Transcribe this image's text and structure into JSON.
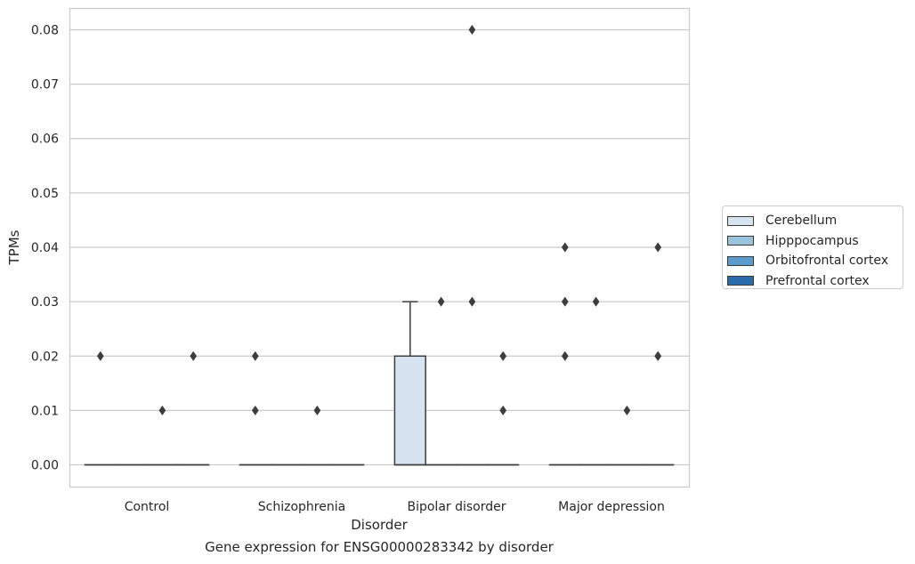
{
  "chart_data": {
    "type": "box",
    "title": "Gene expression for ENSG00000283342 by disorder",
    "xlabel": "Disorder",
    "ylabel": "TPMs",
    "categories": [
      "Control",
      "Schizophrenia",
      "Bipolar disorder",
      "Major depression"
    ],
    "ylim": [
      -0.004,
      0.084
    ],
    "yticks": [
      "0.00",
      "0.01",
      "0.02",
      "0.03",
      "0.04",
      "0.05",
      "0.06",
      "0.07",
      "0.08"
    ],
    "grid": "horizontal",
    "legend_position": "right",
    "series": [
      {
        "name": "Cerebellum",
        "color": "#d6e4f1",
        "boxes": [
          {
            "q1": 0,
            "median": 0,
            "q3": 0,
            "whisker_low": 0,
            "whisker_high": 0,
            "outliers": [
              0.02
            ]
          },
          {
            "q1": 0,
            "median": 0,
            "q3": 0,
            "whisker_low": 0,
            "whisker_high": 0,
            "outliers": [
              0.02,
              0.01
            ]
          },
          {
            "q1": 0,
            "median": 0,
            "q3": 0.02,
            "whisker_low": 0,
            "whisker_high": 0.03,
            "outliers": []
          },
          {
            "q1": 0,
            "median": 0,
            "q3": 0,
            "whisker_low": 0,
            "whisker_high": 0,
            "outliers": [
              0.04,
              0.03,
              0.02
            ]
          }
        ]
      },
      {
        "name": "Hipppocampus",
        "color": "#9ac3dc",
        "boxes": [
          {
            "q1": 0,
            "median": 0,
            "q3": 0,
            "whisker_low": 0,
            "whisker_high": 0,
            "outliers": []
          },
          {
            "q1": 0,
            "median": 0,
            "q3": 0,
            "whisker_low": 0,
            "whisker_high": 0,
            "outliers": []
          },
          {
            "q1": 0,
            "median": 0,
            "q3": 0,
            "whisker_low": 0,
            "whisker_high": 0,
            "outliers": [
              0.03
            ]
          },
          {
            "q1": 0,
            "median": 0,
            "q3": 0,
            "whisker_low": 0,
            "whisker_high": 0,
            "outliers": [
              0.03
            ]
          }
        ]
      },
      {
        "name": "Orbitofrontal cortex",
        "color": "#5b9bc9",
        "boxes": [
          {
            "q1": 0,
            "median": 0,
            "q3": 0,
            "whisker_low": 0,
            "whisker_high": 0,
            "outliers": [
              0.01
            ]
          },
          {
            "q1": 0,
            "median": 0,
            "q3": 0,
            "whisker_low": 0,
            "whisker_high": 0,
            "outliers": [
              0.01
            ]
          },
          {
            "q1": 0,
            "median": 0,
            "q3": 0,
            "whisker_low": 0,
            "whisker_high": 0,
            "outliers": [
              0.08,
              0.03
            ]
          },
          {
            "q1": 0,
            "median": 0,
            "q3": 0,
            "whisker_low": 0,
            "whisker_high": 0,
            "outliers": [
              0.01
            ]
          }
        ]
      },
      {
        "name": "Prefrontal cortex",
        "color": "#2a6bab",
        "boxes": [
          {
            "q1": 0,
            "median": 0,
            "q3": 0,
            "whisker_low": 0,
            "whisker_high": 0,
            "outliers": [
              0.02
            ]
          },
          {
            "q1": 0,
            "median": 0,
            "q3": 0,
            "whisker_low": 0,
            "whisker_high": 0,
            "outliers": []
          },
          {
            "q1": 0,
            "median": 0,
            "q3": 0,
            "whisker_low": 0,
            "whisker_high": 0,
            "outliers": [
              0.02,
              0.01
            ]
          },
          {
            "q1": 0,
            "median": 0,
            "q3": 0,
            "whisker_low": 0,
            "whisker_high": 0,
            "outliers": [
              0.04,
              0.02,
              0.02
            ]
          }
        ]
      }
    ]
  }
}
